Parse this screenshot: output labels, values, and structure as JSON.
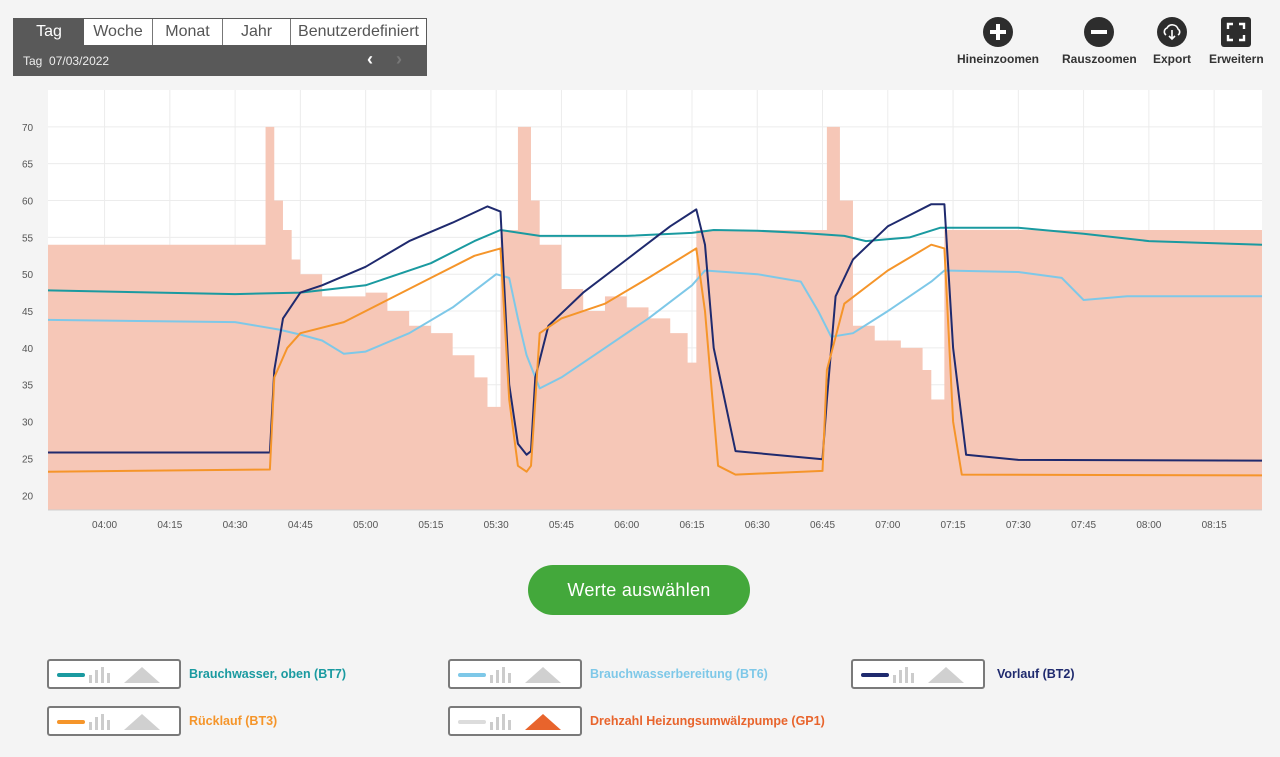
{
  "period": {
    "tabs": [
      "Tag",
      "Woche",
      "Monat",
      "Jahr",
      "Benutzerdefiniert"
    ],
    "active": "Tag",
    "date_label": "Tag",
    "date_value": "07/03/2022",
    "prev_icon": "chevron-left-icon",
    "next_icon": "chevron-right-icon"
  },
  "toolbar": {
    "zoom_in": "Hineinzoomen",
    "zoom_out": "Rauszoomen",
    "export": "Export",
    "expand": "Erweitern"
  },
  "select_button": "Werte auswählen",
  "legend": [
    {
      "label": "Brauchwasser, oben (BT7)",
      "color": "#1a9aa0",
      "mode": "line"
    },
    {
      "label": "Brauchwasserbereitung (BT6)",
      "color": "#7ec8e8",
      "mode": "line"
    },
    {
      "label": "Vorlauf (BT2)",
      "color": "#1f2a6e",
      "mode": "line"
    },
    {
      "label": "Rücklauf (BT3)",
      "color": "#f5952a",
      "mode": "line"
    },
    {
      "label": "Drehzahl Heizungsumwälzpumpe (GP1)",
      "color": "#e8642c",
      "mode": "area"
    }
  ],
  "chart_data": {
    "type": "line",
    "x_ticks": [
      "04:00",
      "04:15",
      "04:30",
      "04:45",
      "05:00",
      "05:15",
      "05:30",
      "05:45",
      "06:00",
      "06:15",
      "06:30",
      "06:45",
      "07:00",
      "07:15",
      "07:30",
      "07:45",
      "08:00",
      "08:15"
    ],
    "y_ticks": [
      20,
      25,
      30,
      35,
      40,
      45,
      50,
      55,
      60,
      65,
      70
    ],
    "xlim": [
      "03:47",
      "08:26"
    ],
    "ylim": [
      18,
      75
    ],
    "grid": true,
    "series": [
      {
        "name": "Brauchwasser, oben (BT7)",
        "color": "#1a9aa0",
        "points": [
          [
            "03:47",
            47.8
          ],
          [
            "04:30",
            47.3
          ],
          [
            "04:45",
            47.5
          ],
          [
            "05:00",
            48.5
          ],
          [
            "05:15",
            51.5
          ],
          [
            "05:25",
            54.5
          ],
          [
            "05:31",
            56
          ],
          [
            "05:40",
            55.2
          ],
          [
            "06:00",
            55.2
          ],
          [
            "06:15",
            55.6
          ],
          [
            "06:20",
            56
          ],
          [
            "06:30",
            55.9
          ],
          [
            "06:40",
            55.6
          ],
          [
            "06:50",
            55.2
          ],
          [
            "06:55",
            54.5
          ],
          [
            "07:05",
            55
          ],
          [
            "07:12",
            56.3
          ],
          [
            "07:30",
            56.3
          ],
          [
            "07:45",
            55.5
          ],
          [
            "08:00",
            54.5
          ],
          [
            "08:26",
            54
          ]
        ]
      },
      {
        "name": "Brauchwasserbereitung (BT6)",
        "color": "#7ec8e8",
        "points": [
          [
            "03:47",
            43.8
          ],
          [
            "04:30",
            43.5
          ],
          [
            "04:35",
            43
          ],
          [
            "04:40",
            42.5
          ],
          [
            "04:45",
            41.8
          ],
          [
            "04:50",
            41
          ],
          [
            "04:55",
            39.2
          ],
          [
            "05:00",
            39.5
          ],
          [
            "05:10",
            42
          ],
          [
            "05:20",
            45.5
          ],
          [
            "05:30",
            50
          ],
          [
            "05:33",
            49.5
          ],
          [
            "05:35",
            44
          ],
          [
            "05:37",
            39
          ],
          [
            "05:40",
            34.5
          ],
          [
            "05:45",
            36
          ],
          [
            "05:55",
            40
          ],
          [
            "06:05",
            44
          ],
          [
            "06:15",
            48.5
          ],
          [
            "06:18",
            50.5
          ],
          [
            "06:30",
            50
          ],
          [
            "06:40",
            49
          ],
          [
            "06:44",
            45
          ],
          [
            "06:47",
            41.5
          ],
          [
            "06:52",
            42
          ],
          [
            "07:00",
            45
          ],
          [
            "07:10",
            49
          ],
          [
            "07:13",
            50.5
          ],
          [
            "07:30",
            50.3
          ],
          [
            "07:40",
            49.5
          ],
          [
            "07:45",
            46.5
          ],
          [
            "07:55",
            47
          ],
          [
            "08:26",
            47
          ]
        ]
      },
      {
        "name": "Vorlauf (BT2)",
        "color": "#1f2a6e",
        "points": [
          [
            "03:47",
            25.8
          ],
          [
            "04:38",
            25.8
          ],
          [
            "04:39",
            37
          ],
          [
            "04:41",
            44
          ],
          [
            "04:45",
            47.5
          ],
          [
            "04:50",
            48.5
          ],
          [
            "05:00",
            51
          ],
          [
            "05:10",
            54.5
          ],
          [
            "05:20",
            57
          ],
          [
            "05:28",
            59.2
          ],
          [
            "05:31",
            58.5
          ],
          [
            "05:33",
            35
          ],
          [
            "05:35",
            27
          ],
          [
            "05:37",
            25.5
          ],
          [
            "05:38",
            26
          ],
          [
            "05:39",
            36
          ],
          [
            "05:42",
            43
          ],
          [
            "05:50",
            47.5
          ],
          [
            "06:00",
            52
          ],
          [
            "06:10",
            56.5
          ],
          [
            "06:16",
            58.8
          ],
          [
            "06:18",
            54
          ],
          [
            "06:20",
            40
          ],
          [
            "06:25",
            26
          ],
          [
            "06:45",
            24.9
          ],
          [
            "06:46",
            33
          ],
          [
            "06:48",
            47
          ],
          [
            "06:52",
            52
          ],
          [
            "07:00",
            56.5
          ],
          [
            "07:10",
            59.5
          ],
          [
            "07:13",
            59.5
          ],
          [
            "07:15",
            40
          ],
          [
            "07:18",
            25.5
          ],
          [
            "07:30",
            24.8
          ],
          [
            "08:26",
            24.7
          ]
        ]
      },
      {
        "name": "Rücklauf (BT3)",
        "color": "#f5952a",
        "points": [
          [
            "03:47",
            23.2
          ],
          [
            "04:38",
            23.5
          ],
          [
            "04:39",
            36
          ],
          [
            "04:42",
            40
          ],
          [
            "04:45",
            42
          ],
          [
            "04:55",
            43.5
          ],
          [
            "05:05",
            46.5
          ],
          [
            "05:15",
            49.5
          ],
          [
            "05:25",
            52.5
          ],
          [
            "05:31",
            53.5
          ],
          [
            "05:33",
            33
          ],
          [
            "05:35",
            24
          ],
          [
            "05:37",
            23.2
          ],
          [
            "05:38",
            24
          ],
          [
            "05:40",
            42
          ],
          [
            "05:45",
            44
          ],
          [
            "05:55",
            46
          ],
          [
            "06:05",
            49.5
          ],
          [
            "06:16",
            53.5
          ],
          [
            "06:18",
            45
          ],
          [
            "06:21",
            24
          ],
          [
            "06:25",
            22.8
          ],
          [
            "06:45",
            23.3
          ],
          [
            "06:46",
            37
          ],
          [
            "06:50",
            46
          ],
          [
            "07:00",
            50.5
          ],
          [
            "07:10",
            54
          ],
          [
            "07:13",
            53.5
          ],
          [
            "07:15",
            30
          ],
          [
            "07:17",
            22.8
          ],
          [
            "08:26",
            22.7
          ]
        ]
      },
      {
        "name": "Drehzahl Heizungsumwälzpumpe (GP1)",
        "color": "#f6c7b7",
        "mode": "area",
        "points": [
          [
            "03:47",
            54
          ],
          [
            "04:36",
            54
          ],
          [
            "04:37",
            70
          ],
          [
            "04:39",
            60
          ],
          [
            "04:41",
            56
          ],
          [
            "04:43",
            52
          ],
          [
            "04:45",
            50
          ],
          [
            "04:50",
            47
          ],
          [
            "04:55",
            47
          ],
          [
            "05:00",
            47.5
          ],
          [
            "05:05",
            45
          ],
          [
            "05:10",
            43
          ],
          [
            "05:15",
            42
          ],
          [
            "05:20",
            39
          ],
          [
            "05:25",
            36
          ],
          [
            "05:28",
            32
          ],
          [
            "05:31",
            56
          ],
          [
            "05:34",
            56
          ],
          [
            "05:35",
            70
          ],
          [
            "05:38",
            60
          ],
          [
            "05:40",
            54
          ],
          [
            "05:45",
            48
          ],
          [
            "05:50",
            45
          ],
          [
            "05:55",
            47
          ],
          [
            "06:00",
            45.5
          ],
          [
            "06:05",
            44
          ],
          [
            "06:10",
            42
          ],
          [
            "06:14",
            38
          ],
          [
            "06:16",
            56
          ],
          [
            "06:40",
            56
          ],
          [
            "06:45",
            56
          ],
          [
            "06:46",
            70
          ],
          [
            "06:49",
            60
          ],
          [
            "06:52",
            43
          ],
          [
            "06:57",
            41
          ],
          [
            "07:03",
            40
          ],
          [
            "07:08",
            37
          ],
          [
            "07:10",
            33
          ],
          [
            "07:13",
            56
          ],
          [
            "08:26",
            56
          ]
        ]
      }
    ]
  }
}
